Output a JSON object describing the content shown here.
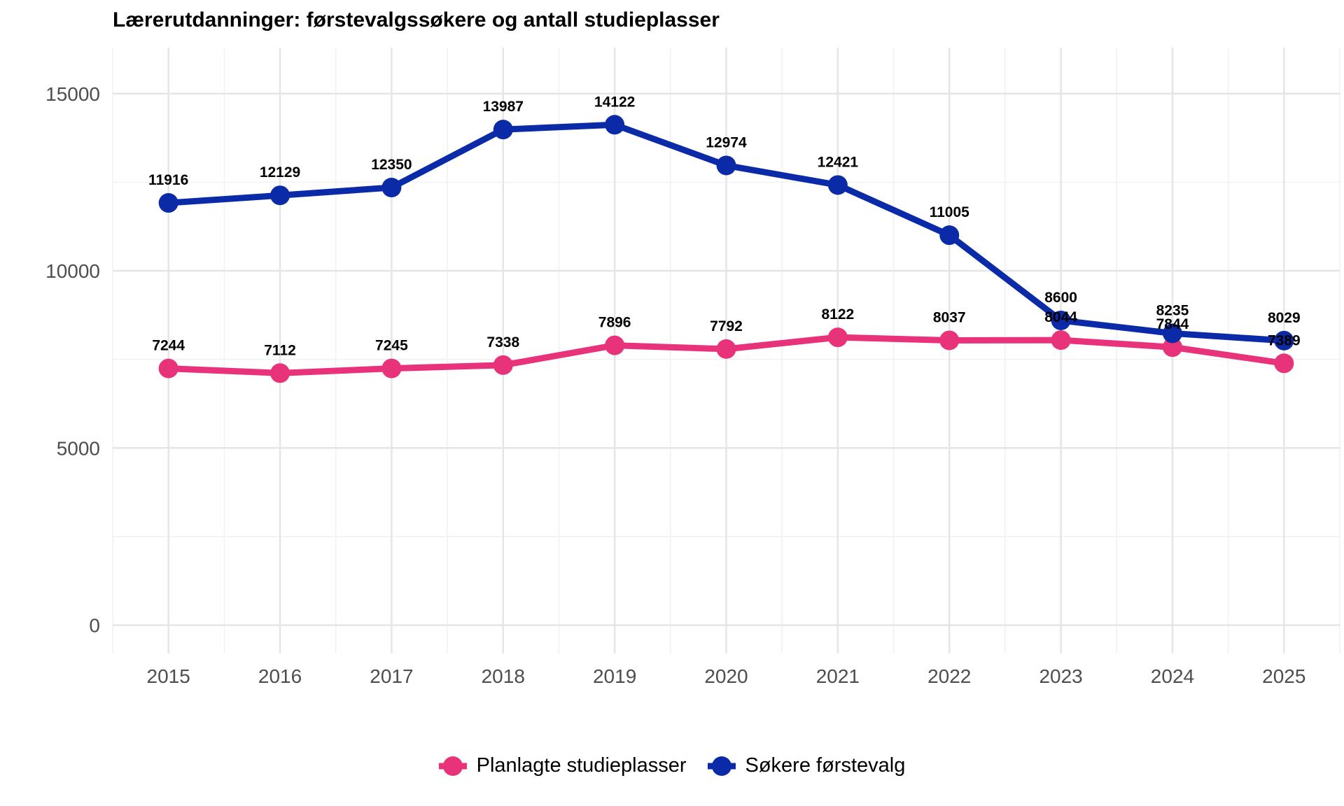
{
  "chart_data": {
    "type": "line",
    "title": "Lærerutdanninger: førstevalgssøkere og antall studieplasser",
    "x": [
      2015,
      2016,
      2017,
      2018,
      2019,
      2020,
      2021,
      2022,
      2023,
      2024,
      2025
    ],
    "series": [
      {
        "name": "Planlagte studieplasser",
        "color": "#e8327a",
        "values": [
          7244,
          7112,
          7245,
          7338,
          7896,
          7792,
          8122,
          8037,
          8044,
          7844,
          7389
        ]
      },
      {
        "name": "Søkere førstevalg",
        "color": "#0a2aa8",
        "values": [
          11916,
          12129,
          12350,
          13987,
          14122,
          12974,
          12421,
          11005,
          8600,
          8235,
          8029
        ]
      }
    ],
    "yticks": [
      0,
      5000,
      10000,
      15000
    ],
    "ylim": [
      -800,
      16300
    ],
    "xlim": [
      2014.5,
      2025.5
    ],
    "grid": true,
    "legend_position": "bottom"
  }
}
